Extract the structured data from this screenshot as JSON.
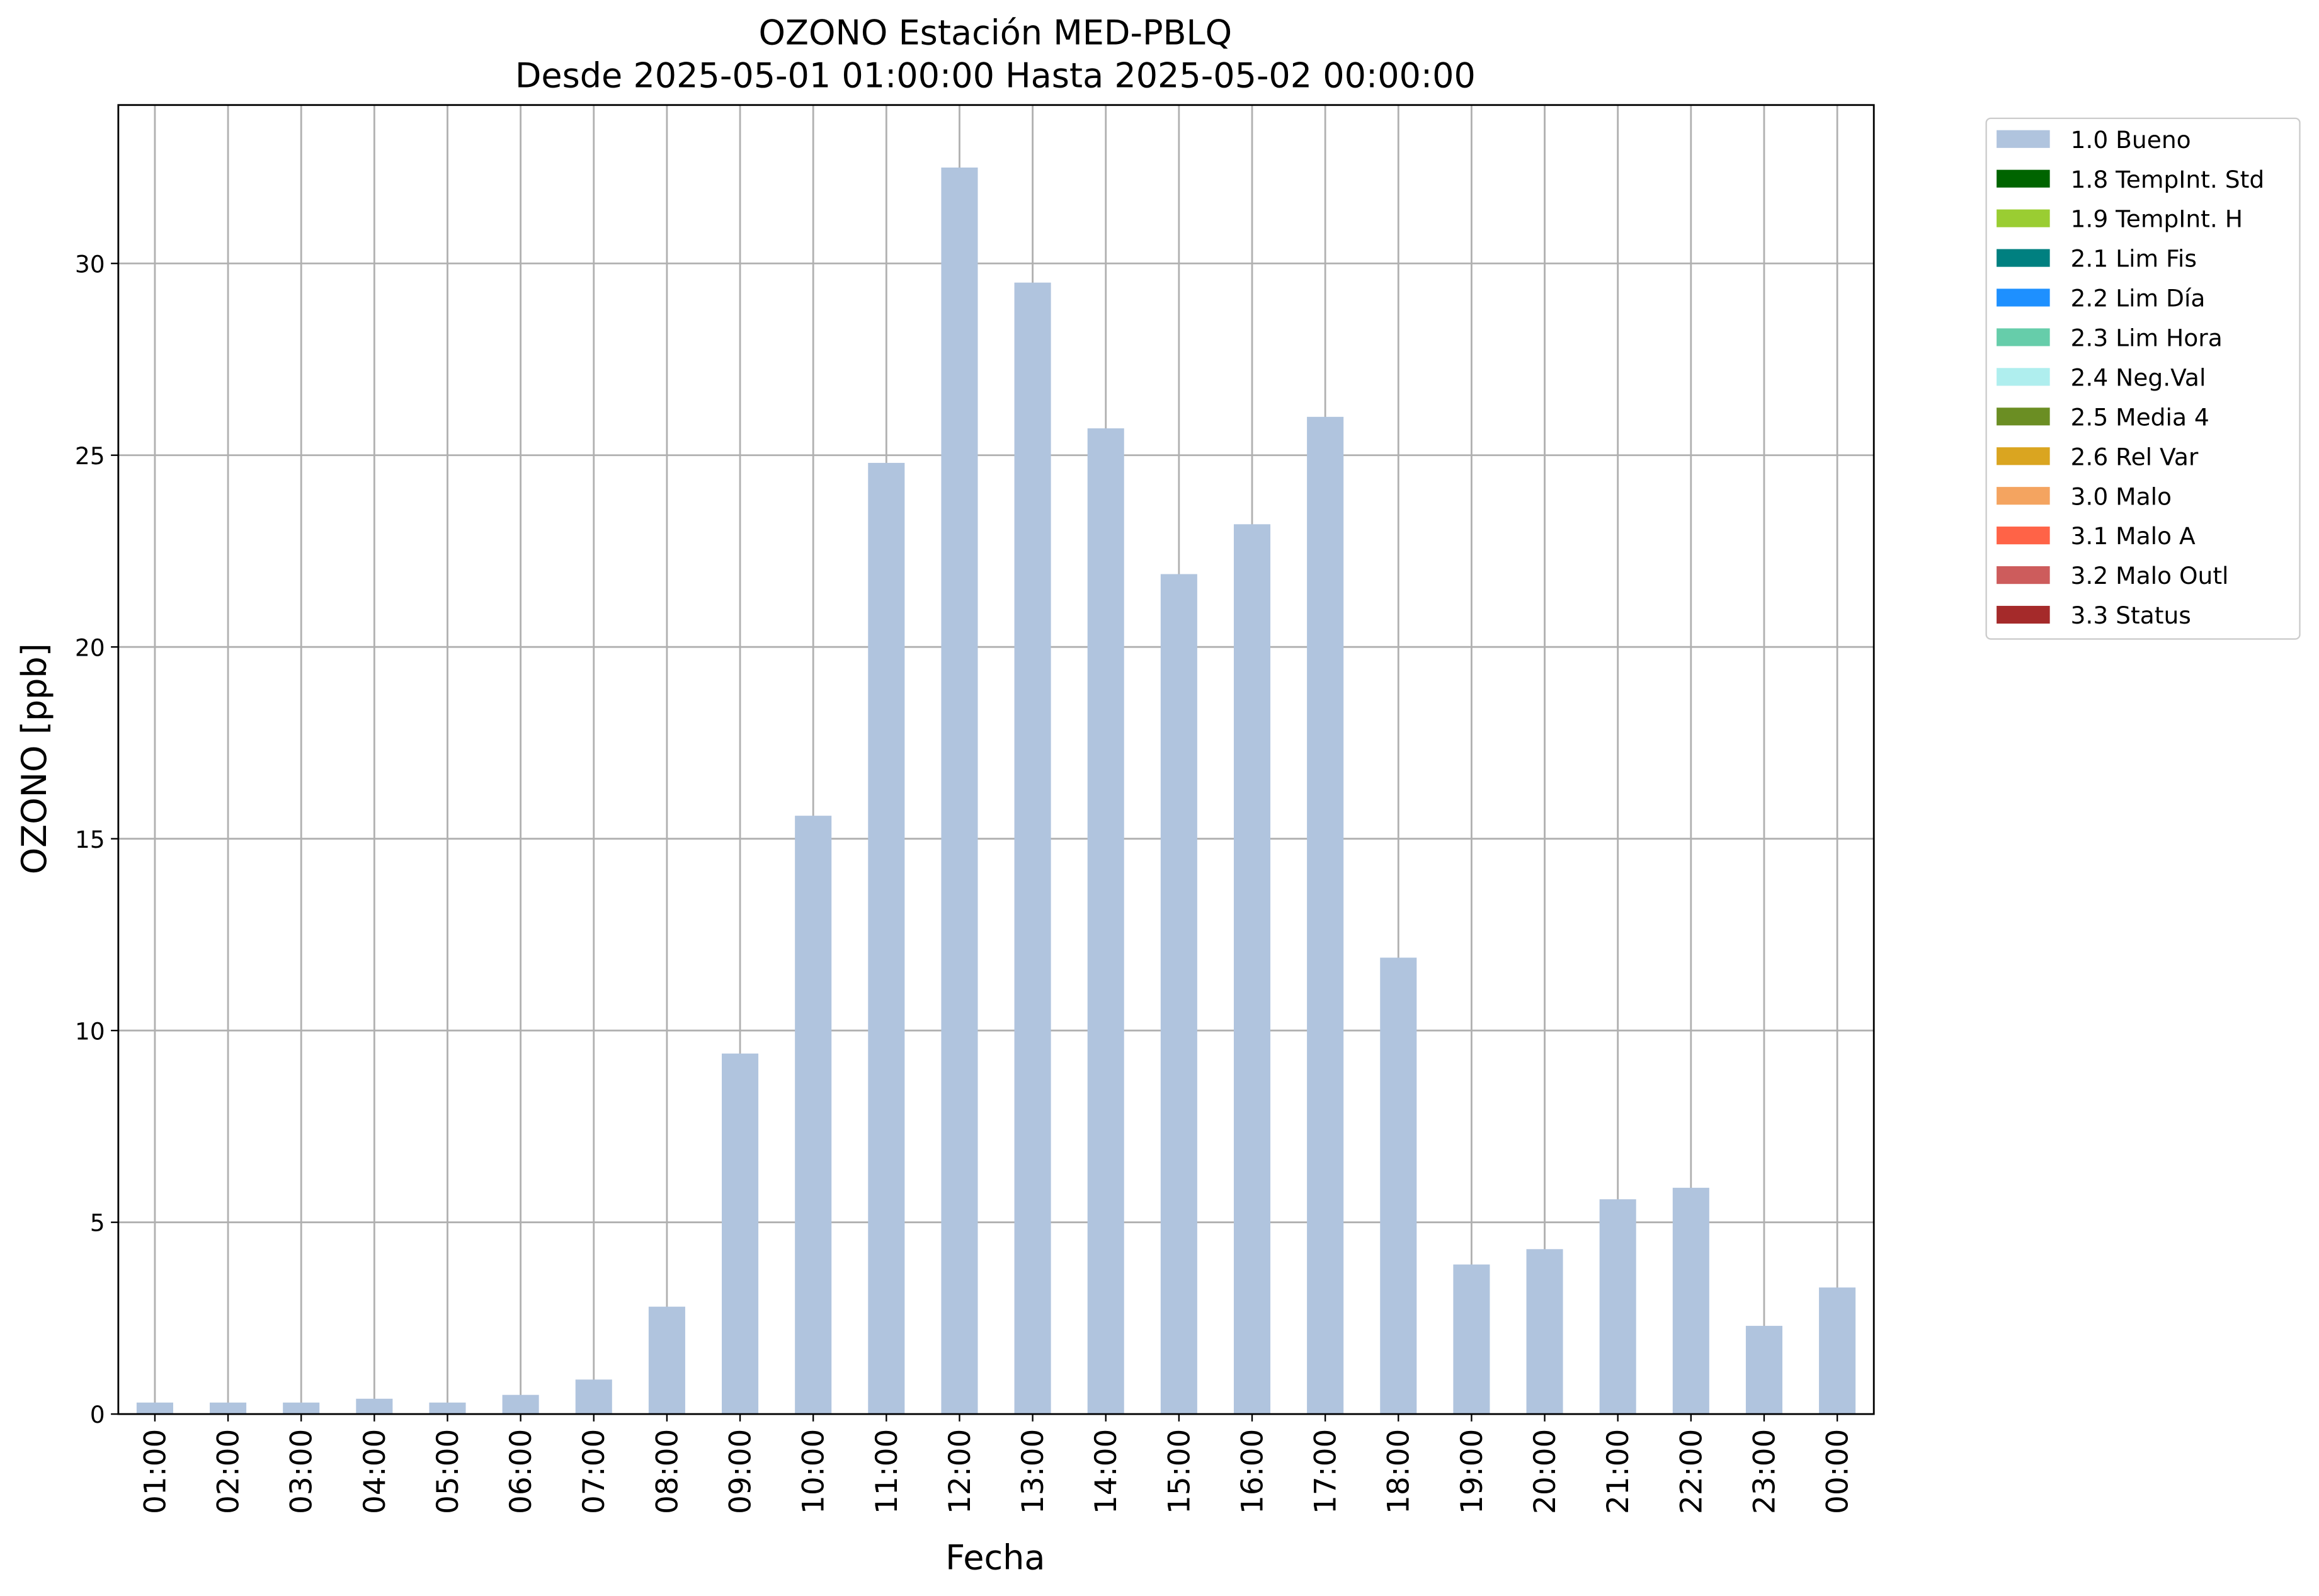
{
  "chart_data": {
    "type": "bar",
    "stacked": true,
    "title": "OZONO Estación MED-PBLQ",
    "subtitle": "Desde 2025-05-01 01:00:00 Hasta 2025-05-02 00:00:00",
    "x_label": "Fecha",
    "y_label": "OZONO [ppb]",
    "categories": [
      "01:00",
      "02:00",
      "03:00",
      "04:00",
      "05:00",
      "06:00",
      "07:00",
      "08:00",
      "09:00",
      "10:00",
      "11:00",
      "12:00",
      "13:00",
      "14:00",
      "15:00",
      "16:00",
      "17:00",
      "18:00",
      "19:00",
      "20:00",
      "21:00",
      "22:00",
      "23:00",
      "00:00"
    ],
    "series": [
      {
        "name": "1.0 Bueno",
        "color": "#b0c4de",
        "values": [
          0.3,
          0.3,
          0.3,
          0.4,
          0.3,
          0.5,
          0.9,
          2.8,
          9.4,
          15.6,
          24.8,
          32.5,
          29.5,
          25.7,
          21.9,
          23.2,
          26.0,
          11.9,
          3.9,
          4.3,
          5.6,
          5.9,
          2.3,
          3.3
        ]
      },
      {
        "name": "1.8 TempInt. Std",
        "color": "#006400",
        "values": [
          0,
          0,
          0,
          0,
          0,
          0,
          0,
          0,
          0,
          0,
          0,
          0,
          0,
          0,
          0,
          0,
          0,
          0,
          0,
          0,
          0,
          0,
          0,
          0
        ]
      },
      {
        "name": "1.9 TempInt. H",
        "color": "#9acd32",
        "values": [
          0,
          0,
          0,
          0,
          0,
          0,
          0,
          0,
          0,
          0,
          0,
          0,
          0,
          0,
          0,
          0,
          0,
          0,
          0,
          0,
          0,
          0,
          0,
          0
        ]
      },
      {
        "name": "2.1 Lim Fis",
        "color": "#008080",
        "values": [
          0,
          0,
          0,
          0,
          0,
          0,
          0,
          0,
          0,
          0,
          0,
          0,
          0,
          0,
          0,
          0,
          0,
          0,
          0,
          0,
          0,
          0,
          0,
          0
        ]
      },
      {
        "name": "2.2 Lim Día",
        "color": "#1e90ff",
        "values": [
          0,
          0,
          0,
          0,
          0,
          0,
          0,
          0,
          0,
          0,
          0,
          0,
          0,
          0,
          0,
          0,
          0,
          0,
          0,
          0,
          0,
          0,
          0,
          0
        ]
      },
      {
        "name": "2.3 Lim Hora",
        "color": "#66cdaa",
        "values": [
          0,
          0,
          0,
          0,
          0,
          0,
          0,
          0,
          0,
          0,
          0,
          0,
          0,
          0,
          0,
          0,
          0,
          0,
          0,
          0,
          0,
          0,
          0,
          0
        ]
      },
      {
        "name": "2.4 Neg.Val",
        "color": "#afeeee",
        "values": [
          0,
          0,
          0,
          0,
          0,
          0,
          0,
          0,
          0,
          0,
          0,
          0,
          0,
          0,
          0,
          0,
          0,
          0,
          0,
          0,
          0,
          0,
          0,
          0
        ]
      },
      {
        "name": "2.5 Media 4",
        "color": "#6b8e23",
        "values": [
          0,
          0,
          0,
          0,
          0,
          0,
          0,
          0,
          0,
          0,
          0,
          0,
          0,
          0,
          0,
          0,
          0,
          0,
          0,
          0,
          0,
          0,
          0,
          0
        ]
      },
      {
        "name": "2.6 Rel Var",
        "color": "#daa520",
        "values": [
          0,
          0,
          0,
          0,
          0,
          0,
          0,
          0,
          0,
          0,
          0,
          0,
          0,
          0,
          0,
          0,
          0,
          0,
          0,
          0,
          0,
          0,
          0,
          0
        ]
      },
      {
        "name": "3.0 Malo",
        "color": "#f4a460",
        "values": [
          0,
          0,
          0,
          0,
          0,
          0,
          0,
          0,
          0,
          0,
          0,
          0,
          0,
          0,
          0,
          0,
          0,
          0,
          0,
          0,
          0,
          0,
          0,
          0
        ]
      },
      {
        "name": "3.1 Malo A",
        "color": "#ff6347",
        "values": [
          0,
          0,
          0,
          0,
          0,
          0,
          0,
          0,
          0,
          0,
          0,
          0,
          0,
          0,
          0,
          0,
          0,
          0,
          0,
          0,
          0,
          0,
          0,
          0
        ]
      },
      {
        "name": "3.2 Malo Outl",
        "color": "#cd5c5c",
        "values": [
          0,
          0,
          0,
          0,
          0,
          0,
          0,
          0,
          0,
          0,
          0,
          0,
          0,
          0,
          0,
          0,
          0,
          0,
          0,
          0,
          0,
          0,
          0,
          0
        ]
      },
      {
        "name": "3.3 Status",
        "color": "#a52a2a",
        "values": [
          0,
          0,
          0,
          0,
          0,
          0,
          0,
          0,
          0,
          0,
          0,
          0,
          0,
          0,
          0,
          0,
          0,
          0,
          0,
          0,
          0,
          0,
          0,
          0
        ]
      }
    ],
    "ylim": [
      0,
      34.13
    ],
    "yticks": [
      0,
      5,
      10,
      15,
      20,
      25,
      30
    ],
    "grid": true,
    "legend": "outside-upper-right"
  }
}
